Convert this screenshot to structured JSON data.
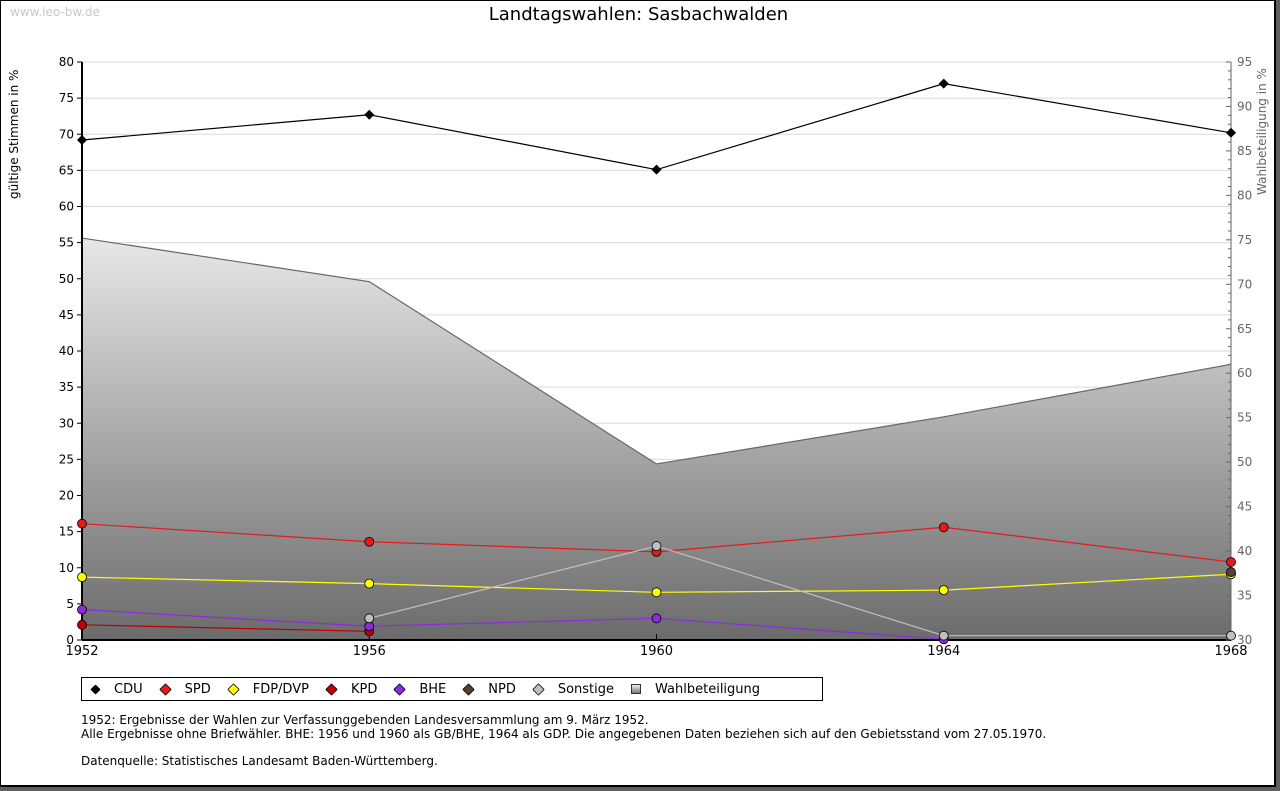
{
  "watermark": "www.leo-bw.de",
  "chart_data": {
    "type": "line",
    "title": "Landtagswahlen: Sasbachwalden",
    "ylabel": "gültige Stimmen in %",
    "y2label": "Wahlbeteiligung in %",
    "xlabel": "",
    "x": [
      1952,
      1956,
      1960,
      1964,
      1968
    ],
    "x_ticks": [
      "1952",
      "1956",
      "1960",
      "1964",
      "1968"
    ],
    "ylim": [
      0,
      80
    ],
    "y2lim": [
      30,
      95
    ],
    "y_ticks": [
      "0",
      "5",
      "10",
      "15",
      "20",
      "25",
      "30",
      "35",
      "40",
      "45",
      "50",
      "55",
      "60",
      "65",
      "70",
      "75",
      "80"
    ],
    "y2_ticks": [
      "30",
      "35",
      "40",
      "45",
      "50",
      "55",
      "60",
      "65",
      "70",
      "75",
      "80",
      "85",
      "90",
      "95"
    ],
    "grid": true,
    "legend_position": "bottom",
    "series": [
      {
        "name": "CDU",
        "color": "#000000",
        "values": [
          69.2,
          72.7,
          65.1,
          77.0,
          70.2
        ]
      },
      {
        "name": "SPD",
        "color": "#e41a1c",
        "values": [
          16.1,
          13.6,
          12.2,
          15.6,
          10.8
        ]
      },
      {
        "name": "FDP/DVP",
        "color": "#ffff00",
        "values": [
          8.7,
          7.8,
          6.6,
          6.9,
          9.1
        ]
      },
      {
        "name": "KPD",
        "color": "#c00000",
        "values": [
          2.1,
          1.2,
          null,
          null,
          null
        ]
      },
      {
        "name": "BHE",
        "color": "#8a2be2",
        "values": [
          4.2,
          1.9,
          3.0,
          0.1,
          null
        ]
      },
      {
        "name": "NPD",
        "color": "#5a3e2b",
        "values": [
          null,
          null,
          null,
          null,
          9.4
        ]
      },
      {
        "name": "Sonstige",
        "color": "#c0c0c0",
        "values": [
          null,
          3.0,
          13.0,
          0.6,
          0.6
        ]
      }
    ],
    "area": {
      "name": "Wahlbeteiligung",
      "axis": "right",
      "values": [
        75.2,
        70.3,
        49.8,
        55.1,
        61.0
      ]
    }
  },
  "notes": [
    "1952: Ergebnisse der Wahlen zur Verfassunggebenden Landesversammlung am 9. März 1952.",
    "Alle Ergebnisse ohne Briefwähler. BHE: 1956 und 1960 als GB/BHE, 1964 als GDP. Die angegebenen Daten beziehen sich auf den Gebietsstand vom 27.05.1970.",
    "",
    "Datenquelle: Statistisches Landesamt Baden-Württemberg."
  ]
}
